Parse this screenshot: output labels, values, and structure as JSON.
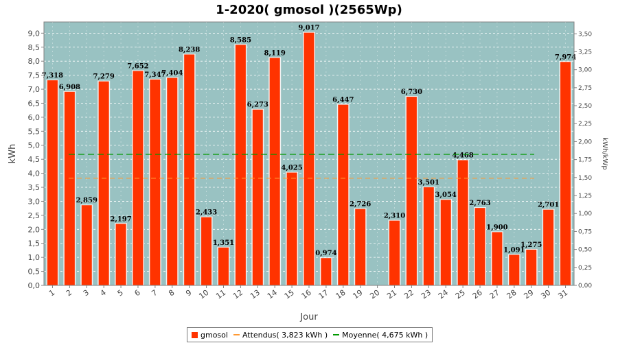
{
  "chart_data": {
    "type": "bar",
    "title": "1-2020( gmosol )(2565Wp)",
    "xlabel": "Jour",
    "ylabel": "kWh",
    "y2label": "kWh/kWp",
    "categories": [
      "1",
      "2",
      "3",
      "4",
      "5",
      "6",
      "7",
      "8",
      "9",
      "10",
      "11",
      "12",
      "13",
      "14",
      "15",
      "16",
      "17",
      "18",
      "19",
      "20",
      "21",
      "22",
      "23",
      "24",
      "25",
      "26",
      "27",
      "28",
      "29",
      "30",
      "31"
    ],
    "series": [
      {
        "name": "gmosol",
        "color": "#ff3300",
        "values": [
          7.318,
          6.908,
          2.859,
          7.279,
          2.197,
          7.652,
          7.347,
          7.404,
          8.238,
          2.433,
          1.351,
          8.585,
          6.273,
          8.119,
          4.025,
          9.017,
          0.974,
          6.447,
          2.726,
          0,
          2.31,
          6.73,
          3.501,
          3.054,
          4.468,
          2.763,
          1.9,
          1.091,
          1.275,
          2.701,
          7.974
        ],
        "labels": [
          "7,318",
          "6,908",
          "2,859",
          "7,279",
          "2,197",
          "7,652",
          "7,347",
          "7,404",
          "8,238",
          "2,433",
          "1,351",
          "8,585",
          "6,273",
          "8,119",
          "4,025",
          "9,017",
          "0,974",
          "6,447",
          "2,726",
          "",
          "2,310",
          "6,730",
          "3,501",
          "3,054",
          "4,468",
          "2,763",
          "1,900",
          "1,091",
          "1,275",
          "2,701",
          "7,974"
        ]
      }
    ],
    "reference_lines": [
      {
        "name": "Attendus( 3,823 kWh )",
        "value": 3.823,
        "color": "#ff9933",
        "dash": "7,5"
      },
      {
        "name": "Moyenne( 4,675 kWh )",
        "value": 4.675,
        "color": "#009900",
        "dash": "9,5"
      }
    ],
    "ylim": [
      0,
      9.4
    ],
    "y_ticks": [
      "0,0",
      "0,5",
      "1,0",
      "1,5",
      "2,0",
      "2,5",
      "3,0",
      "3,5",
      "4,0",
      "4,5",
      "5,0",
      "5,5",
      "6,0",
      "6,5",
      "7,0",
      "7,5",
      "8,0",
      "8,5",
      "9,0"
    ],
    "y2lim": [
      0,
      3.6647
    ],
    "y2_ticks": [
      "0,00",
      "0,25",
      "0,50",
      "0,75",
      "1,00",
      "1,25",
      "1,50",
      "1,75",
      "2,00",
      "2,25",
      "2,50",
      "2,75",
      "3,00",
      "3,25",
      "3,50"
    ],
    "plot_background": "#99c2c2",
    "grid": true,
    "legend_position": "bottom"
  },
  "legend": [
    {
      "label": "gmosol",
      "color": "#ff3300",
      "kind": "box"
    },
    {
      "label": "Attendus( 3,823 kWh )",
      "color": "#ff9933",
      "kind": "line"
    },
    {
      "label": "Moyenne( 4,675 kWh )",
      "color": "#009900",
      "kind": "line"
    }
  ]
}
